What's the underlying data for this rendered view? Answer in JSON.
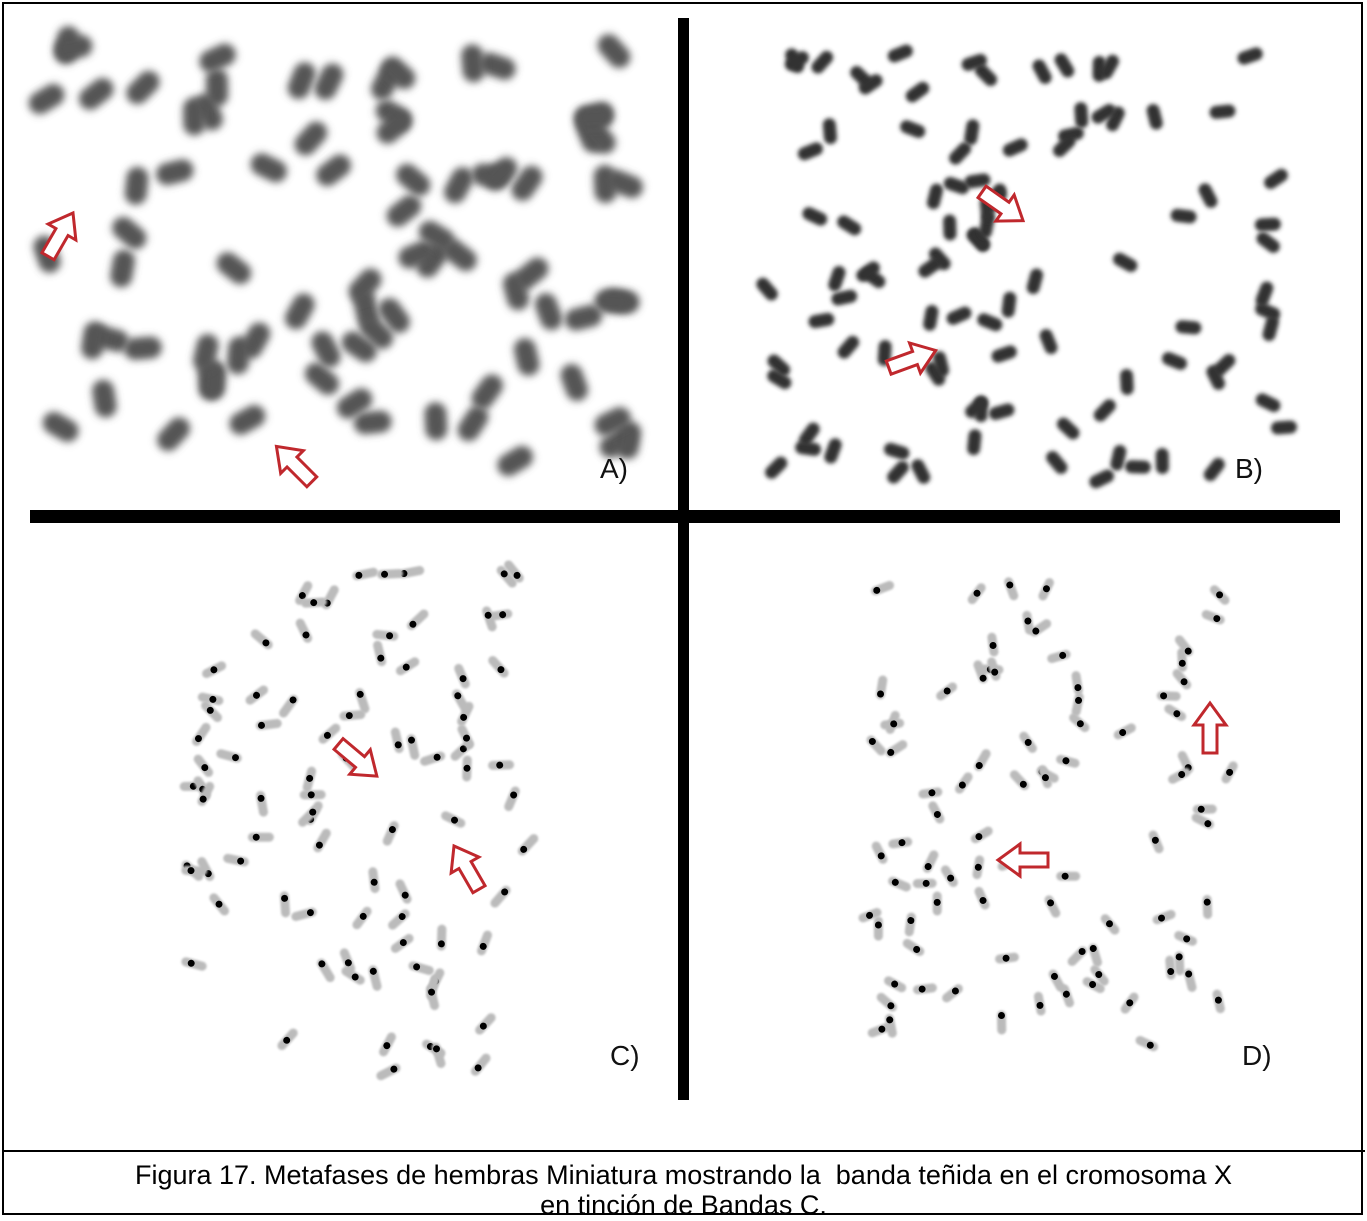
{
  "figure": {
    "panels": [
      {
        "label": "A)"
      },
      {
        "label": "B)"
      },
      {
        "label": "C)"
      },
      {
        "label": "D)"
      }
    ]
  },
  "caption": {
    "lines": [
      "Figura 17. Metafases de hembras Miniatura mostrando la  banda teñida en el cromosoma X",
      "en tinción de Bandas C."
    ]
  }
}
